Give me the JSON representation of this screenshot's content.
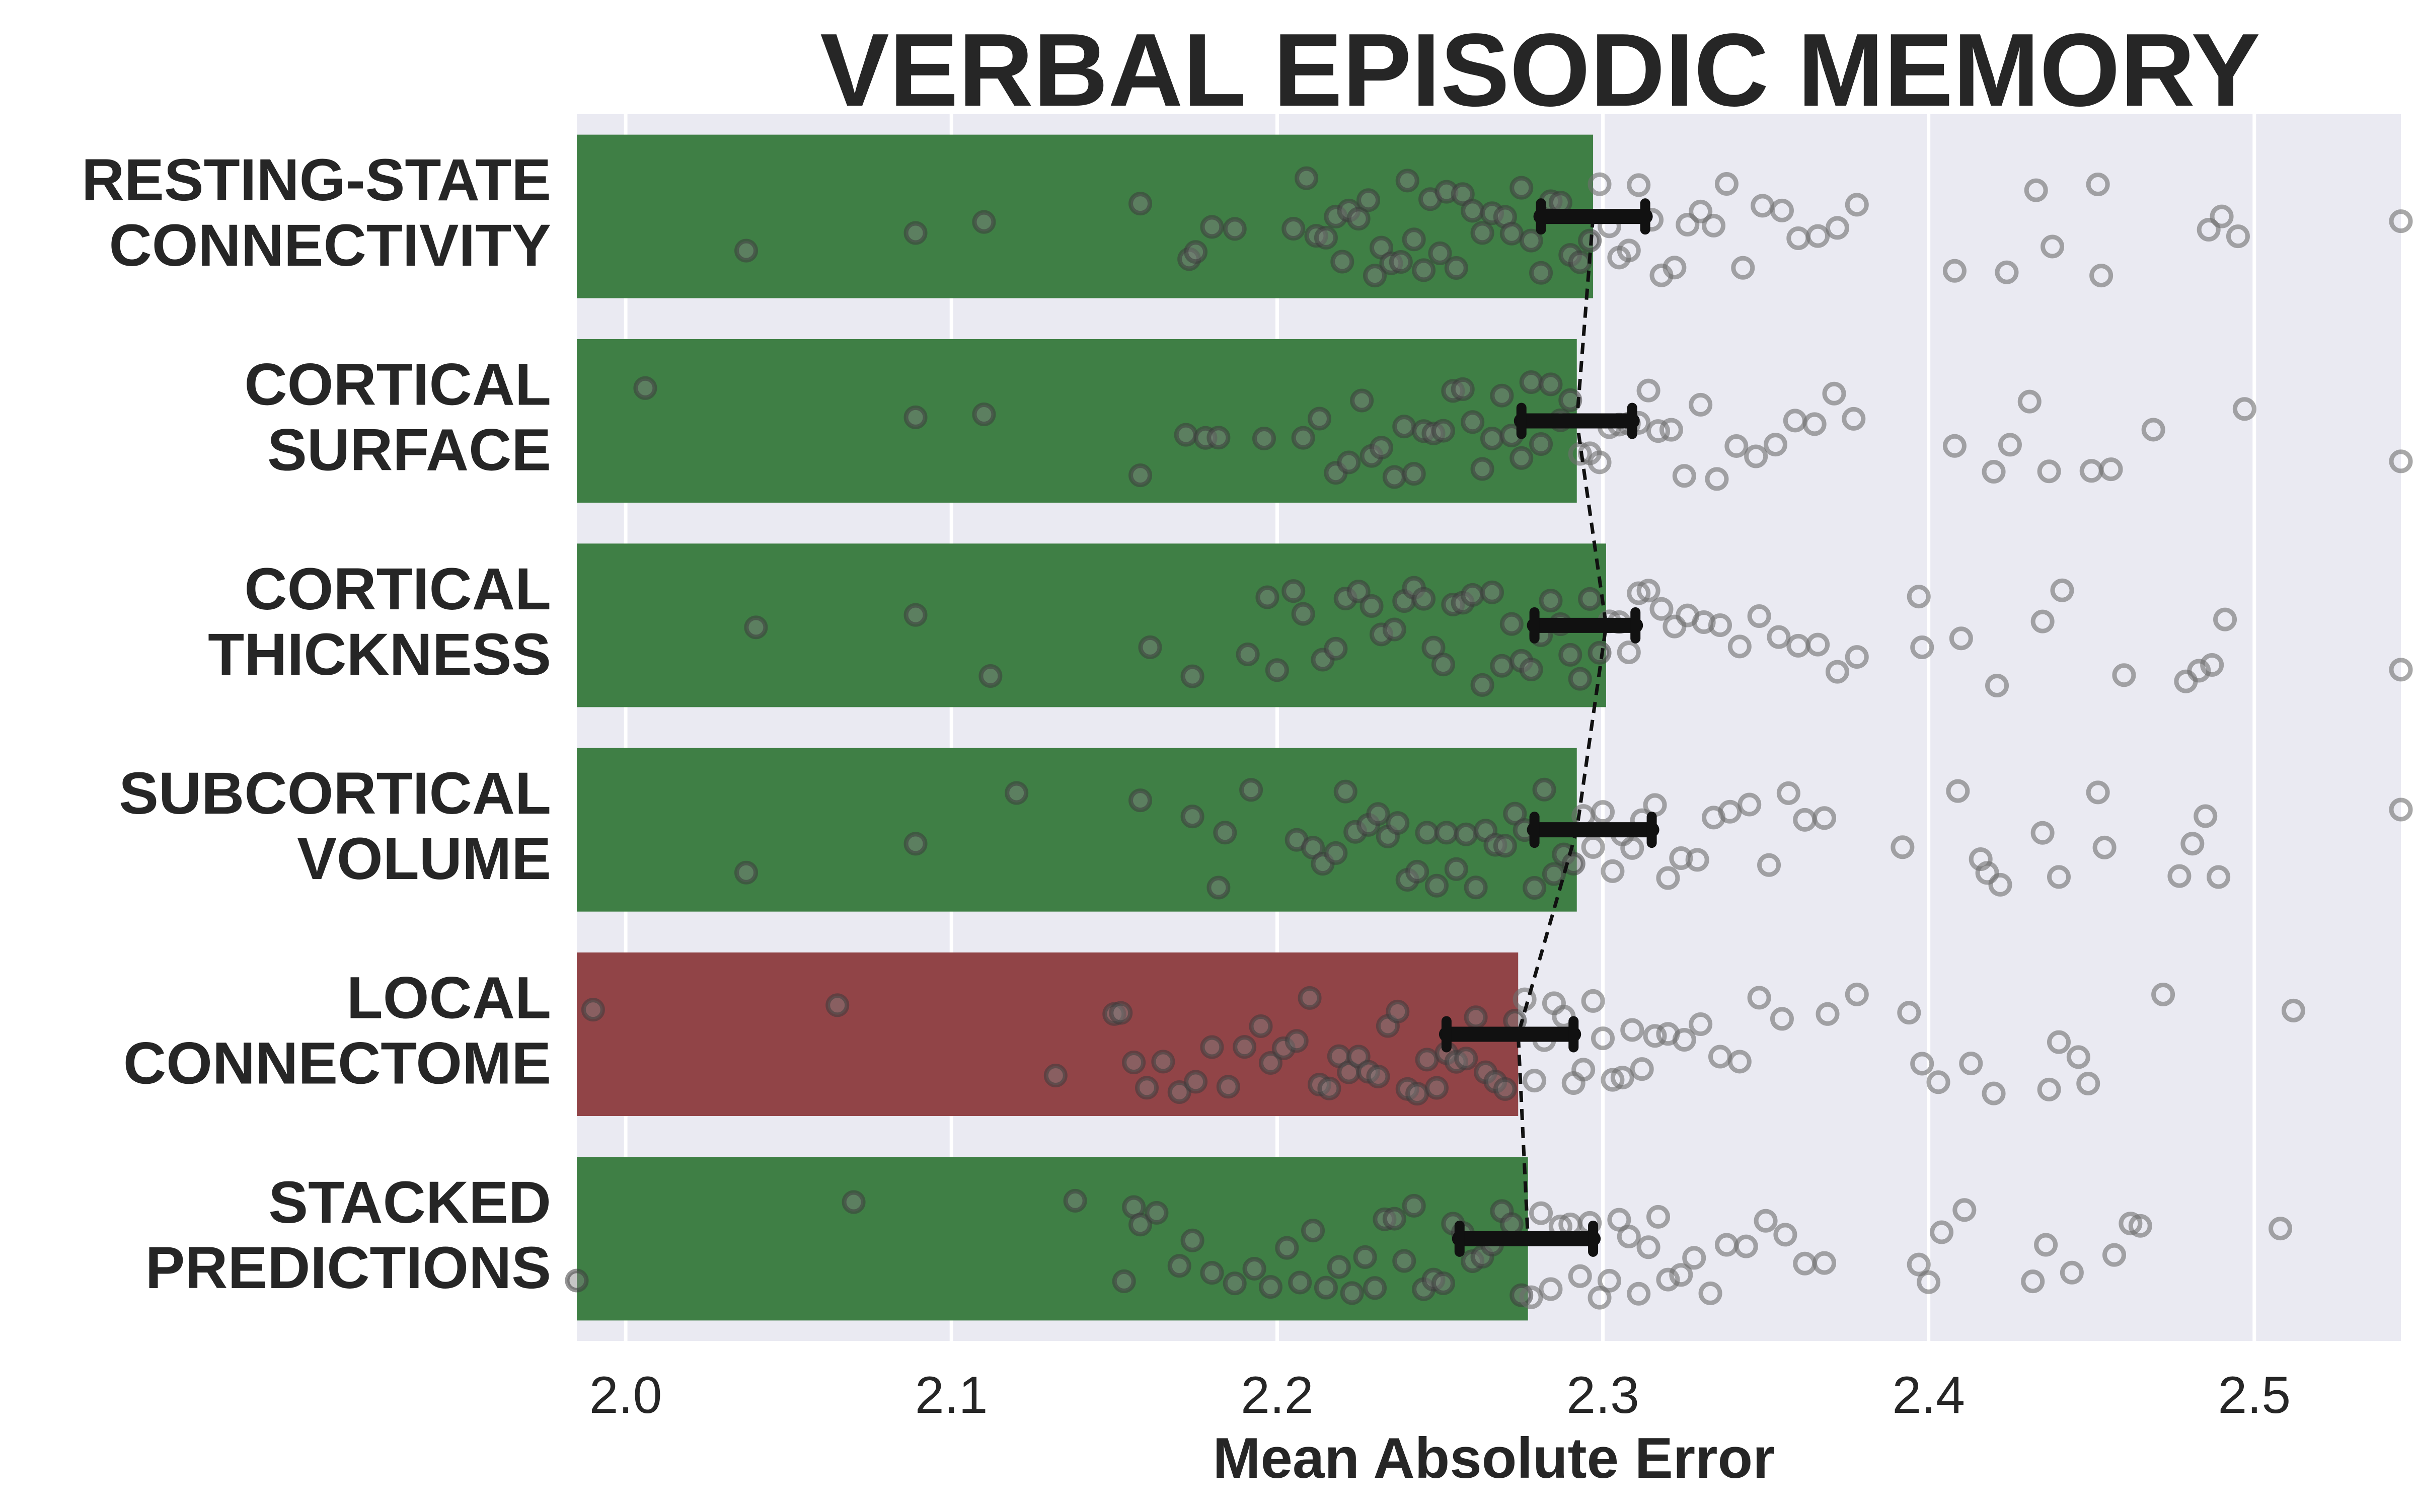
{
  "chart_data": {
    "type": "bar",
    "orientation": "horizontal",
    "title": "VERBAL EPISODIC MEMORY",
    "xlabel": "Mean Absolute Error",
    "ylabel": "",
    "xlim": [
      1.985,
      2.545
    ],
    "xticks": [
      "2.0",
      "2.1",
      "2.2",
      "2.3",
      "2.4",
      "2.5"
    ],
    "grid": true,
    "categories": [
      {
        "id": "rsc",
        "lines": [
          "RESTING-STATE",
          "CONNECTIVITY"
        ]
      },
      {
        "id": "surf",
        "lines": [
          "CORTICAL",
          "SURFACE"
        ]
      },
      {
        "id": "thick",
        "lines": [
          "CORTICAL",
          "THICKNESS"
        ]
      },
      {
        "id": "subc",
        "lines": [
          "SUBCORTICAL",
          "VOLUME"
        ]
      },
      {
        "id": "local",
        "lines": [
          "LOCAL",
          "CONNECTOME"
        ]
      },
      {
        "id": "stacked",
        "lines": [
          "STACKED",
          "PREDICTIONS"
        ]
      }
    ],
    "values": [
      2.297,
      2.292,
      2.301,
      2.292,
      2.274,
      2.277
    ],
    "bar_colors": [
      "#3f7f45",
      "#3f7f45",
      "#3f7f45",
      "#3f7f45",
      "#914447",
      "#3f7f45"
    ],
    "error_intervals": [
      [
        2.281,
        2.313
      ],
      [
        2.275,
        2.309
      ],
      [
        2.279,
        2.31
      ],
      [
        2.279,
        2.315
      ],
      [
        2.252,
        2.291
      ],
      [
        2.256,
        2.297
      ]
    ],
    "connecting_line": "dashed",
    "background_color": "#eaeaf2",
    "marker_color": "#808080",
    "points": [
      [
        2.037,
        2.089,
        2.11,
        2.158,
        2.173,
        2.175,
        2.18,
        2.187,
        2.205,
        2.209,
        2.212,
        2.215,
        2.218,
        2.22,
        2.222,
        2.225,
        2.228,
        2.23,
        2.232,
        2.235,
        2.238,
        2.24,
        2.242,
        2.245,
        2.247,
        2.25,
        2.252,
        2.255,
        2.257,
        2.26,
        2.263,
        2.266,
        2.27,
        2.272,
        2.275,
        2.278,
        2.281,
        2.284,
        2.287,
        2.29,
        2.293,
        2.296,
        2.299,
        2.302,
        2.305,
        2.308,
        2.311,
        2.315,
        2.318,
        2.322,
        2.326,
        2.33,
        2.334,
        2.338,
        2.343,
        2.349,
        2.355,
        2.36,
        2.366,
        2.372,
        2.378,
        2.408,
        2.424,
        2.433,
        2.438,
        2.452,
        2.453,
        2.486,
        2.49,
        2.495,
        2.545
      ],
      [
        2.006,
        2.089,
        2.11,
        2.158,
        2.172,
        2.178,
        2.182,
        2.196,
        2.208,
        2.213,
        2.218,
        2.222,
        2.226,
        2.229,
        2.232,
        2.236,
        2.239,
        2.242,
        2.245,
        2.248,
        2.251,
        2.254,
        2.257,
        2.26,
        2.263,
        2.266,
        2.269,
        2.272,
        2.275,
        2.278,
        2.281,
        2.284,
        2.287,
        2.29,
        2.293,
        2.296,
        2.299,
        2.302,
        2.305,
        2.308,
        2.311,
        2.314,
        2.317,
        2.321,
        2.325,
        2.33,
        2.335,
        2.341,
        2.347,
        2.353,
        2.359,
        2.365,
        2.371,
        2.377,
        2.408,
        2.42,
        2.425,
        2.431,
        2.437,
        2.45,
        2.456,
        2.469,
        2.497,
        2.545
      ],
      [
        2.04,
        2.089,
        2.112,
        2.161,
        2.174,
        2.191,
        2.197,
        2.2,
        2.205,
        2.208,
        2.214,
        2.218,
        2.221,
        2.225,
        2.229,
        2.232,
        2.236,
        2.239,
        2.242,
        2.245,
        2.248,
        2.251,
        2.254,
        2.257,
        2.26,
        2.263,
        2.266,
        2.269,
        2.272,
        2.275,
        2.278,
        2.281,
        2.284,
        2.287,
        2.29,
        2.293,
        2.296,
        2.299,
        2.302,
        2.305,
        2.308,
        2.311,
        2.314,
        2.318,
        2.322,
        2.326,
        2.331,
        2.336,
        2.342,
        2.348,
        2.354,
        2.36,
        2.366,
        2.372,
        2.378,
        2.397,
        2.398,
        2.41,
        2.421,
        2.435,
        2.441,
        2.46,
        2.479,
        2.483,
        2.487,
        2.491,
        2.545
      ],
      [
        2.037,
        2.089,
        2.12,
        2.158,
        2.174,
        2.182,
        2.184,
        2.192,
        2.206,
        2.211,
        2.214,
        2.218,
        2.221,
        2.224,
        2.228,
        2.231,
        2.234,
        2.237,
        2.24,
        2.243,
        2.246,
        2.249,
        2.252,
        2.255,
        2.258,
        2.261,
        2.264,
        2.267,
        2.27,
        2.273,
        2.276,
        2.279,
        2.282,
        2.285,
        2.288,
        2.291,
        2.294,
        2.297,
        2.3,
        2.303,
        2.306,
        2.309,
        2.312,
        2.316,
        2.32,
        2.324,
        2.329,
        2.334,
        2.339,
        2.345,
        2.351,
        2.357,
        2.362,
        2.368,
        2.392,
        2.409,
        2.416,
        2.418,
        2.422,
        2.435,
        2.44,
        2.452,
        2.454,
        2.477,
        2.481,
        2.485,
        2.489,
        2.545
      ],
      [
        1.99,
        2.065,
        2.132,
        2.15,
        2.152,
        2.156,
        2.16,
        2.165,
        2.17,
        2.175,
        2.18,
        2.185,
        2.19,
        2.195,
        2.198,
        2.202,
        2.206,
        2.21,
        2.213,
        2.216,
        2.219,
        2.222,
        2.225,
        2.228,
        2.231,
        2.234,
        2.237,
        2.24,
        2.243,
        2.246,
        2.249,
        2.252,
        2.255,
        2.258,
        2.261,
        2.264,
        2.267,
        2.27,
        2.273,
        2.276,
        2.279,
        2.282,
        2.285,
        2.288,
        2.291,
        2.294,
        2.297,
        2.3,
        2.303,
        2.306,
        2.309,
        2.312,
        2.316,
        2.32,
        2.325,
        2.33,
        2.336,
        2.342,
        2.348,
        2.355,
        2.369,
        2.378,
        2.394,
        2.398,
        2.403,
        2.413,
        2.42,
        2.437,
        2.44,
        2.446,
        2.449,
        2.472,
        2.512
      ],
      [
        1.985,
        2.07,
        2.138,
        2.153,
        2.156,
        2.158,
        2.163,
        2.17,
        2.174,
        2.18,
        2.187,
        2.193,
        2.198,
        2.203,
        2.207,
        2.211,
        2.215,
        2.219,
        2.223,
        2.227,
        2.23,
        2.233,
        2.236,
        2.239,
        2.242,
        2.245,
        2.248,
        2.251,
        2.254,
        2.257,
        2.26,
        2.263,
        2.266,
        2.269,
        2.272,
        2.275,
        2.278,
        2.281,
        2.284,
        2.287,
        2.29,
        2.293,
        2.296,
        2.299,
        2.302,
        2.305,
        2.308,
        2.311,
        2.314,
        2.317,
        2.32,
        2.324,
        2.328,
        2.333,
        2.338,
        2.344,
        2.35,
        2.356,
        2.362,
        2.368,
        2.397,
        2.4,
        2.404,
        2.411,
        2.432,
        2.436,
        2.444,
        2.457,
        2.462,
        2.465,
        2.508
      ]
    ]
  }
}
